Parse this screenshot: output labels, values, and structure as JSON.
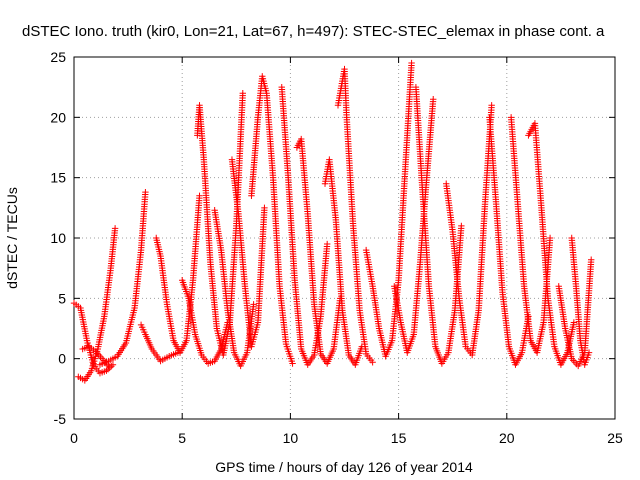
{
  "chart_data": {
    "type": "scatter",
    "title": "dSTEC Iono. truth (kir0, Lon=21, Lat=67, h=497): STEC-STEC_elemax in phase cont. a",
    "xlabel": "GPS time / hours of day 126 of year 2014",
    "ylabel": "dSTEC  / TECUs",
    "xlim": [
      0,
      25
    ],
    "ylim": [
      -5,
      25
    ],
    "xticks": [
      0,
      5,
      10,
      15,
      20,
      25
    ],
    "yticks": [
      -5,
      0,
      5,
      10,
      15,
      20,
      25
    ],
    "grid": true,
    "marker": "+",
    "color": "#ff0000",
    "series": [
      {
        "x": [
          0.0,
          0.3,
          0.6,
          0.9,
          1.2,
          1.5,
          1.8
        ],
        "values": [
          4.6,
          4.2,
          1.5,
          -0.5,
          -1.2,
          -1.0,
          -0.5
        ]
      },
      {
        "x": [
          0.2,
          0.5,
          0.8,
          1.1,
          1.4,
          1.7,
          1.9
        ],
        "values": [
          -1.5,
          -1.8,
          -1.0,
          0.8,
          3.5,
          7.5,
          10.8
        ]
      },
      {
        "x": [
          0.4,
          0.7,
          1.0,
          1.3,
          1.6
        ],
        "values": [
          0.8,
          1.0,
          0.6,
          0.0,
          -0.6
        ]
      },
      {
        "x": [
          1.2,
          1.6,
          2.0,
          2.4,
          2.8,
          3.1,
          3.3
        ],
        "values": [
          -0.5,
          -0.2,
          0.2,
          1.3,
          4.2,
          9.0,
          13.8
        ]
      },
      {
        "x": [
          3.1,
          3.3,
          3.6,
          4.0,
          4.4,
          4.8
        ],
        "values": [
          2.8,
          2.0,
          0.8,
          -0.2,
          0.2,
          0.5
        ]
      },
      {
        "x": [
          3.8,
          4.0,
          4.3,
          4.6,
          4.9,
          5.2,
          5.5,
          5.8
        ],
        "values": [
          10.0,
          8.5,
          4.5,
          1.5,
          0.5,
          1.5,
          6.5,
          13.5
        ]
      },
      {
        "x": [
          5.0,
          5.3,
          5.6,
          5.9,
          6.2,
          6.5,
          6.8,
          7.1
        ],
        "values": [
          6.5,
          5.0,
          2.0,
          0.3,
          -0.4,
          -0.2,
          0.8,
          3.0
        ]
      },
      {
        "x": [
          5.7,
          5.8,
          6.0,
          6.3,
          6.6,
          6.9,
          7.2,
          7.5,
          7.8
        ],
        "values": [
          18.5,
          21.0,
          16.5,
          8.0,
          2.5,
          0.3,
          3.0,
          11.0,
          22.0
        ]
      },
      {
        "x": [
          6.5,
          6.8,
          7.1,
          7.4,
          7.7,
          8.0,
          8.3
        ],
        "values": [
          12.3,
          9.0,
          4.0,
          0.5,
          -0.6,
          0.5,
          4.5
        ]
      },
      {
        "x": [
          7.3,
          7.6,
          7.9,
          8.2,
          8.5,
          8.8
        ],
        "values": [
          16.5,
          12.0,
          6.0,
          1.0,
          3.0,
          12.5
        ]
      },
      {
        "x": [
          8.2,
          8.5,
          8.7,
          8.9,
          9.2,
          9.5,
          9.8,
          10.1
        ],
        "values": [
          13.5,
          20.0,
          23.4,
          22.0,
          15.0,
          6.0,
          1.2,
          -0.4
        ]
      },
      {
        "x": [
          9.6,
          9.9,
          10.2,
          10.5,
          10.8,
          11.1,
          11.4,
          11.7
        ],
        "values": [
          22.5,
          15.0,
          6.5,
          0.8,
          -0.5,
          0.3,
          3.5,
          9.5
        ]
      },
      {
        "x": [
          10.3,
          10.5,
          10.8,
          11.1,
          11.4,
          11.7,
          12.0,
          12.3
        ],
        "values": [
          17.5,
          18.2,
          12.0,
          4.5,
          0.4,
          -0.4,
          0.8,
          5.0
        ]
      },
      {
        "x": [
          11.6,
          11.8,
          12.1,
          12.4,
          12.7,
          13.0,
          13.3
        ],
        "values": [
          14.5,
          16.5,
          11.5,
          4.0,
          0.3,
          -0.5,
          1.0
        ]
      },
      {
        "x": [
          12.2,
          12.5,
          12.6,
          12.9,
          13.2,
          13.5,
          13.8
        ],
        "values": [
          21.0,
          24.0,
          20.0,
          11.0,
          4.0,
          0.4,
          -0.3
        ]
      },
      {
        "x": [
          13.5,
          13.8,
          14.1,
          14.4,
          14.7,
          15.0,
          15.3,
          15.6
        ],
        "values": [
          9.0,
          6.0,
          2.5,
          0.2,
          1.5,
          6.5,
          15.5,
          24.5
        ]
      },
      {
        "x": [
          14.8,
          15.1,
          15.4,
          15.7,
          16.0,
          16.3,
          16.6
        ],
        "values": [
          6.0,
          3.0,
          0.5,
          2.0,
          8.0,
          15.0,
          21.5
        ]
      },
      {
        "x": [
          15.8,
          16.1,
          16.4,
          16.7,
          17.0,
          17.3,
          17.6,
          17.9
        ],
        "values": [
          22.5,
          14.0,
          6.0,
          1.0,
          -0.4,
          0.5,
          4.0,
          11.0
        ]
      },
      {
        "x": [
          17.2,
          17.5,
          17.8,
          18.1,
          18.4,
          18.7,
          19.0,
          19.3
        ],
        "values": [
          14.5,
          10.5,
          5.0,
          1.0,
          0.3,
          4.0,
          13.0,
          21.0
        ]
      },
      {
        "x": [
          19.2,
          19.5,
          19.8,
          20.1,
          20.4,
          20.7,
          21.0
        ],
        "values": [
          20.0,
          13.0,
          5.5,
          1.0,
          -0.5,
          0.5,
          3.5
        ]
      },
      {
        "x": [
          20.2,
          20.5,
          20.8,
          21.1,
          21.4,
          21.7,
          22.0
        ],
        "values": [
          20.0,
          13.0,
          6.0,
          1.5,
          0.5,
          3.0,
          10.0
        ]
      },
      {
        "x": [
          21.0,
          21.3,
          21.6,
          21.9,
          22.2,
          22.5,
          22.8,
          23.1
        ],
        "values": [
          18.5,
          19.5,
          12.5,
          5.0,
          1.0,
          -0.5,
          0.5,
          3.0
        ]
      },
      {
        "x": [
          22.4,
          22.7,
          23.0,
          23.3,
          23.6,
          23.9
        ],
        "values": [
          6.0,
          2.5,
          0.0,
          -0.6,
          0.5,
          8.2
        ]
      },
      {
        "x": [
          23.0,
          23.2,
          23.4,
          23.6,
          23.8
        ],
        "values": [
          10.0,
          6.0,
          1.5,
          -0.5,
          0.5
        ]
      }
    ]
  }
}
